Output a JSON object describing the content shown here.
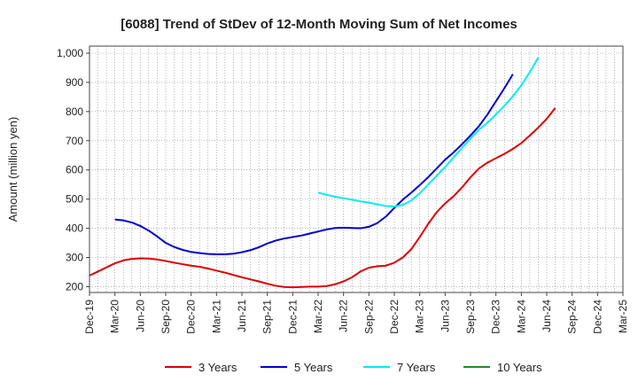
{
  "chart_data": {
    "type": "line",
    "title": "[6088]  Trend of StDev of 12-Month Moving Sum of Net Incomes",
    "xlabel": "",
    "ylabel": "Amount (million yen)",
    "ylim": [
      180,
      1000
    ],
    "yticks": [
      200,
      300,
      400,
      500,
      600,
      700,
      800,
      900,
      1000
    ],
    "ytick_labels": [
      "200",
      "300",
      "400",
      "500",
      "600",
      "700",
      "800",
      "900",
      "1,000"
    ],
    "x_labels": [
      "Dec-19",
      "Mar-20",
      "Jun-20",
      "Sep-20",
      "Dec-20",
      "Mar-21",
      "Jun-21",
      "Sep-21",
      "Dec-21",
      "Mar-22",
      "Jun-22",
      "Sep-22",
      "Dec-22",
      "Mar-23",
      "Jun-23",
      "Sep-23",
      "Dec-23",
      "Mar-24",
      "Jun-24",
      "Sep-24",
      "Dec-24",
      "Mar-25"
    ],
    "grid": true,
    "legend_position": "bottom",
    "series": [
      {
        "name": "3 Years",
        "color": "#dd0000",
        "start_month": 0,
        "values": [
          238,
          252,
          266,
          280,
          290,
          295,
          297,
          296,
          293,
          288,
          282,
          277,
          272,
          268,
          262,
          255,
          248,
          240,
          232,
          225,
          218,
          210,
          203,
          199,
          198,
          199,
          200,
          200,
          202,
          208,
          218,
          232,
          252,
          265,
          270,
          272,
          282,
          300,
          328,
          370,
          415,
          455,
          485,
          510,
          540,
          575,
          605,
          625,
          640,
          655,
          672,
          692,
          718,
          745,
          775,
          812
        ]
      },
      {
        "name": "5 Years",
        "color": "#0000cc",
        "start_month": 3,
        "values": [
          430,
          427,
          420,
          408,
          392,
          372,
          350,
          336,
          326,
          319,
          315,
          312,
          311,
          311,
          313,
          318,
          325,
          335,
          348,
          358,
          365,
          370,
          375,
          382,
          389,
          396,
          401,
          402,
          401,
          400,
          405,
          418,
          440,
          470,
          498,
          522,
          548,
          575,
          605,
          635,
          660,
          688,
          718,
          750,
          790,
          835,
          880,
          928
        ]
      },
      {
        "name": "7 Years",
        "color": "#00eeee",
        "start_month": 27,
        "values": [
          522,
          515,
          508,
          503,
          498,
          492,
          488,
          482,
          476,
          475,
          480,
          495,
          520,
          550,
          580,
          610,
          643,
          675,
          708,
          738,
          762,
          790,
          820,
          852,
          890,
          935,
          985
        ]
      },
      {
        "name": "10 Years",
        "color": "#228b22",
        "start_month": 0,
        "values": []
      }
    ]
  }
}
